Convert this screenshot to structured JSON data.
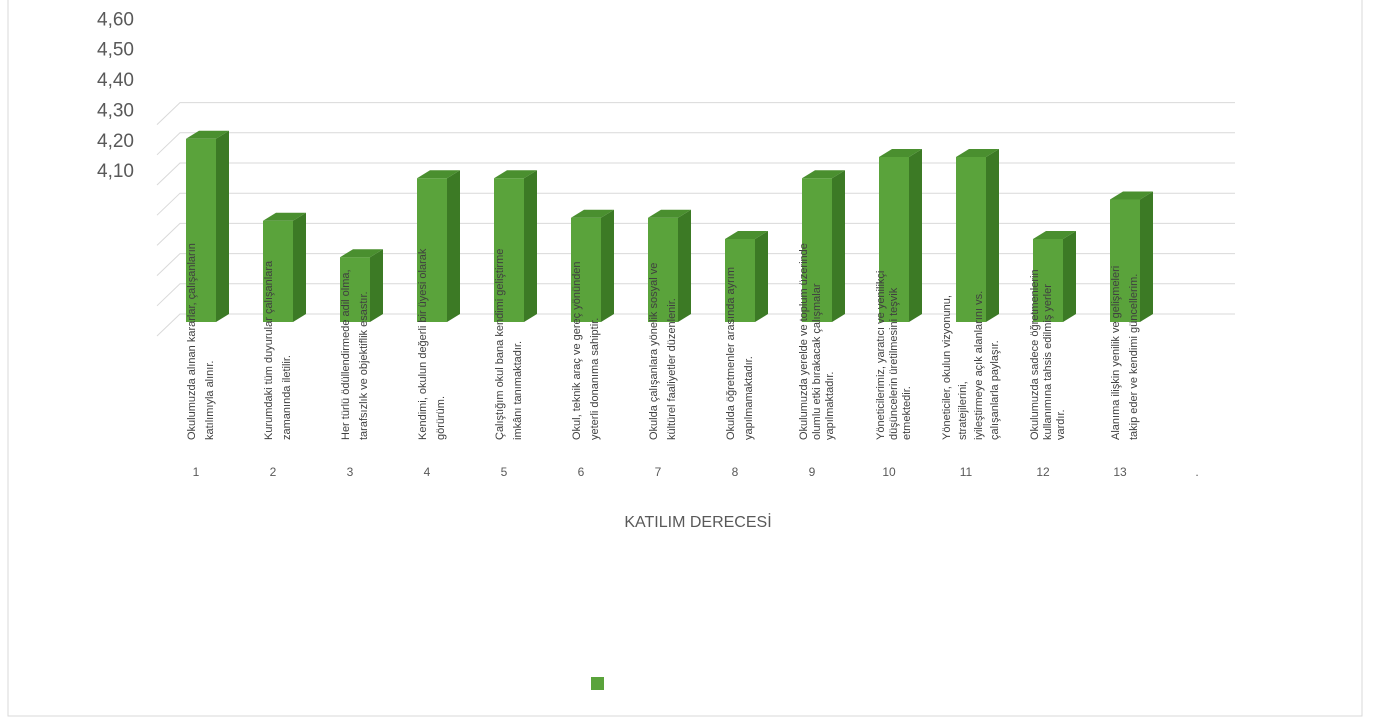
{
  "chart_data": {
    "type": "bar",
    "categories": [
      "1",
      "2",
      "3",
      "4",
      "5",
      "6",
      "7",
      "8",
      "9",
      "10",
      "11",
      "12",
      "13",
      "."
    ],
    "values": [
      4.21,
      3.94,
      3.82,
      4.08,
      4.08,
      3.95,
      3.95,
      3.88,
      4.08,
      4.15,
      4.15,
      3.88,
      4.01,
      null
    ],
    "annotations": [
      [
        "Okulumuzda alınan kararlar, çalışanların",
        "katılımıyla alınır."
      ],
      [
        "Kurumdaki tüm duyurular çalışanlara",
        "zamanında iletilir."
      ],
      [
        "Her türlü ödüllendirmede adil olma,",
        "tarafsızlık ve objektiflik esastır."
      ],
      [
        "Kendimi, okulun değerli bir üyesi olarak",
        "görürüm."
      ],
      [
        "Çalıştığım okul bana kendimi geliştirme",
        "imkânı tanımaktadır."
      ],
      [
        "Okul, teknik araç ve gereç yönünden",
        "yeterli donanıma sahiptir."
      ],
      [
        "Okulda çalışanlara yönelik sosyal ve",
        "kültürel faaliyetler düzenlenir."
      ],
      [
        "Okulda öğretmenler arasında ayrım",
        "yapılmamaktadır."
      ],
      [
        "Okulumuzda yerelde ve toplum üzerinde",
        "olumlu etki bırakacak çalışmalar",
        "yapılmaktadır."
      ],
      [
        "Yöneticilerimiz, yaratıcı ve yenilikçi",
        "düşüncelerin üretilmesini teşvik",
        "etmektedir."
      ],
      [
        "Yöneticiler, okulun vizyonunu,",
        "stratejilerini,",
        "iyileştirmeye açık alanlarını vs.",
        "çalışanlarla paylaşır."
      ],
      [
        "Okulumuzda sadece öğretmenlerin",
        "kullanımına tahsis edilmiş yerler",
        "vardır."
      ],
      [
        "Alanıma ilişkin yenilik ve gelişmeleri",
        "takip eder ve kendimi güncellerim."
      ]
    ],
    "x_label": "KATILIM DERECESİ",
    "color": "#5aa33b",
    "ylim": [
      3.6,
      4.7
    ],
    "yticks": [
      {
        "value": 4.1,
        "label": "4,10"
      },
      {
        "value": 4.2,
        "label": "4,20"
      },
      {
        "value": 4.3,
        "label": "4,30"
      },
      {
        "value": 4.4,
        "label": "4,40"
      },
      {
        "value": 4.5,
        "label": "4,50"
      },
      {
        "value": 4.6,
        "label": "4,60"
      }
    ],
    "grid": true
  }
}
